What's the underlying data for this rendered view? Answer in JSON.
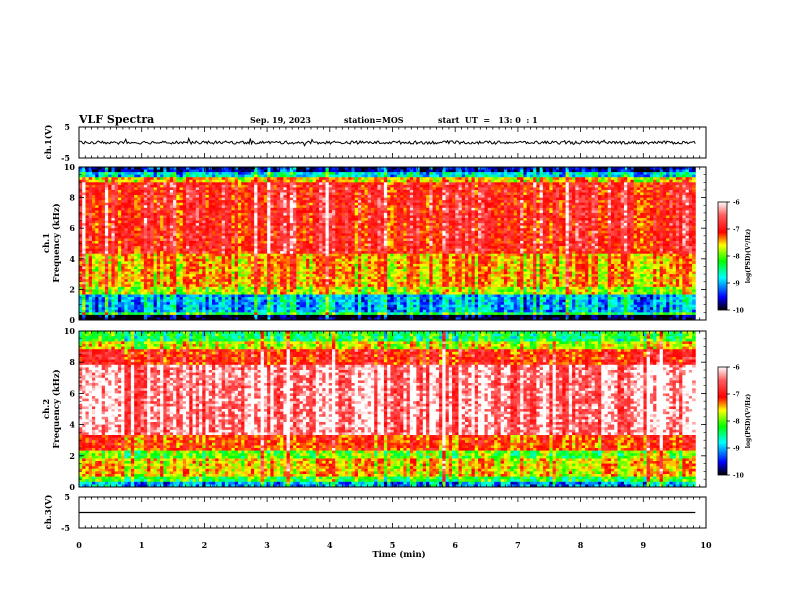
{
  "header": {
    "title": "VLF Spectra",
    "date": "Sep. 19, 2023",
    "station": "station=MOS",
    "start": "start  UT  =   13: 0  : 1"
  },
  "chart_data": [
    {
      "type": "line",
      "panel": "ch1-waveform",
      "ylabel": "ch.1(V)",
      "ylim": [
        -5,
        5
      ],
      "yticks": [
        "5",
        "-5"
      ],
      "mean_value": 0.0,
      "noise_amplitude": 0.5,
      "x_range_min": [
        0,
        9.83
      ]
    },
    {
      "type": "heatmap",
      "panel": "ch1-spectrogram",
      "ylabel": "ch.1\nFrequency (kHz)",
      "ylim": [
        0,
        10
      ],
      "yticks": [
        "0",
        "2",
        "4",
        "6",
        "8",
        "10"
      ],
      "x_range_min": [
        0,
        9.83
      ],
      "bands_khz": [
        {
          "from": 0.0,
          "to": 0.3,
          "level": -10
        },
        {
          "from": 0.3,
          "to": 0.5,
          "level": -8.3
        },
        {
          "from": 0.5,
          "to": 1.6,
          "level": -9.0
        },
        {
          "from": 1.6,
          "to": 2.2,
          "level": -7.8
        },
        {
          "from": 2.2,
          "to": 4.3,
          "level": -7.4
        },
        {
          "from": 4.3,
          "to": 9.0,
          "level": -6.8
        },
        {
          "from": 9.0,
          "to": 9.4,
          "level": -7.5
        },
        {
          "from": 9.4,
          "to": 9.7,
          "level": -8.8
        },
        {
          "from": 9.7,
          "to": 10.0,
          "level": -9.6
        }
      ],
      "colorbar": {
        "label": "log(PSD)(V²/Hz)",
        "range": [
          -10,
          -6
        ],
        "ticks": [
          "-6",
          "-7",
          "-8",
          "-9",
          "-10"
        ]
      }
    },
    {
      "type": "heatmap",
      "panel": "ch2-spectrogram",
      "ylabel": "ch.2\nFrequency (kHz)",
      "ylim": [
        0,
        10
      ],
      "yticks": [
        "0",
        "2",
        "4",
        "6",
        "8",
        "10"
      ],
      "x_range_min": [
        0,
        9.83
      ],
      "bands_khz": [
        {
          "from": 0.0,
          "to": 0.3,
          "level": -9.0
        },
        {
          "from": 0.3,
          "to": 0.6,
          "level": -8.2
        },
        {
          "from": 0.6,
          "to": 1.8,
          "level": -7.5
        },
        {
          "from": 1.8,
          "to": 2.4,
          "level": -8.0
        },
        {
          "from": 2.4,
          "to": 3.4,
          "level": -7.1
        },
        {
          "from": 3.4,
          "to": 7.8,
          "level": -6.2
        },
        {
          "from": 7.8,
          "to": 8.8,
          "level": -6.9
        },
        {
          "from": 8.8,
          "to": 9.4,
          "level": -7.7
        },
        {
          "from": 9.4,
          "to": 10.0,
          "level": -8.3
        }
      ],
      "colorbar": {
        "label": "log(PSD)(V²/Hz)",
        "range": [
          -10,
          -6
        ],
        "ticks": [
          "-6",
          "-7",
          "-8",
          "-9",
          "-10"
        ]
      }
    },
    {
      "type": "line",
      "panel": "ch3-waveform",
      "ylabel": "ch.3(V)",
      "ylim": [
        -5,
        5
      ],
      "yticks": [
        "5",
        "-5"
      ],
      "mean_value": 0.0,
      "noise_amplitude": 0.0,
      "x_range_min": [
        0,
        9.83
      ]
    }
  ],
  "xaxis": {
    "label": "Time (min)",
    "xlim": [
      0,
      10
    ],
    "ticks": [
      "0",
      "1",
      "2",
      "3",
      "4",
      "5",
      "6",
      "7",
      "8",
      "9",
      "10"
    ]
  },
  "colors": {
    "scale": [
      "#000000",
      "#0000ff",
      "#00ffff",
      "#00ff00",
      "#ffff00",
      "#ff0000",
      "#ffffff"
    ]
  }
}
